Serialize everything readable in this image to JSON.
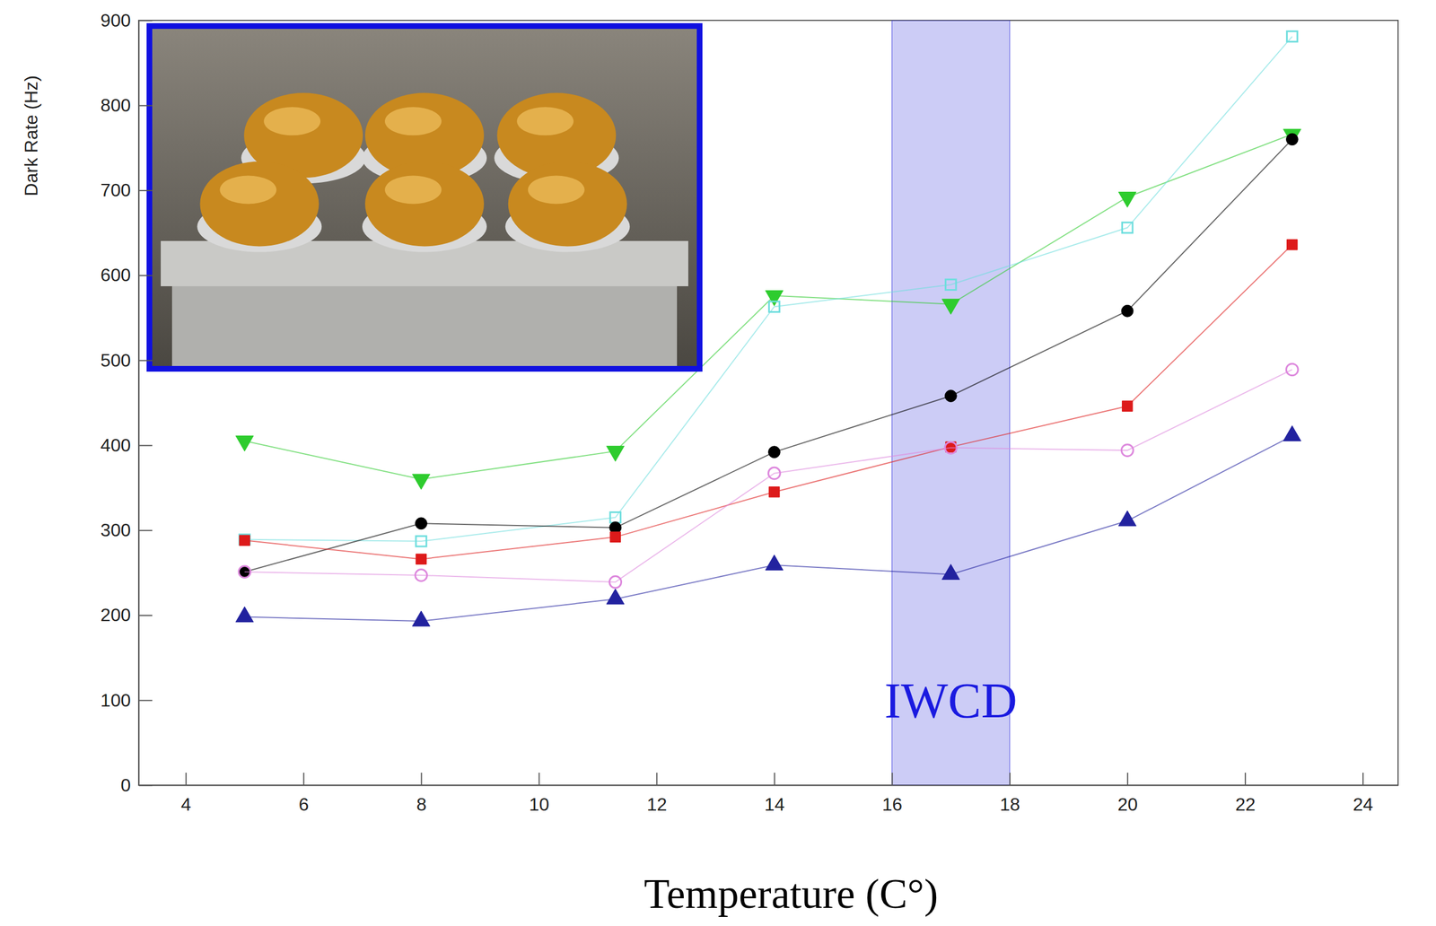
{
  "chart_data": {
    "type": "line",
    "x_label": "Temperature (C°)",
    "y_label": "Dark Rate (Hz)",
    "x": [
      5,
      8,
      11.3,
      14,
      17,
      20,
      22.8
    ],
    "series": [
      {
        "color": "#2ecc2e",
        "marker": "triangle-down",
        "values": [
          405,
          360,
          393,
          576,
          566,
          692,
          766
        ]
      },
      {
        "color": "#6fdede",
        "marker": "square-open",
        "values": [
          289,
          287,
          315,
          563,
          589,
          656,
          881
        ]
      },
      {
        "color": "#000000",
        "marker": "circle",
        "values": [
          251,
          308,
          303,
          392,
          458,
          558,
          760
        ]
      },
      {
        "color": "#dd1a1a",
        "marker": "square",
        "values": [
          288,
          266,
          292,
          345,
          398,
          446,
          636
        ]
      },
      {
        "color": "#dd88dd",
        "marker": "circle-open",
        "values": [
          251,
          247,
          239,
          367,
          397,
          394,
          489
        ]
      },
      {
        "color": "#22229f",
        "marker": "triangle-up",
        "values": [
          198,
          193,
          219,
          259,
          248,
          311,
          411
        ]
      }
    ],
    "xlim": [
      3.2,
      24.6
    ],
    "xticks": [
      4,
      6,
      8,
      10,
      12,
      14,
      16,
      18,
      20,
      22,
      24
    ],
    "ylim": [
      0,
      900
    ],
    "yticks": [
      0,
      100,
      200,
      300,
      400,
      500,
      600,
      700,
      800,
      900
    ],
    "shaded_region": {
      "x": [
        16,
        18
      ],
      "label": "IWCD",
      "color": "#3333dd"
    },
    "grid": false
  }
}
